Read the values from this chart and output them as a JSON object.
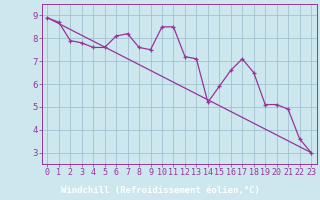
{
  "xlabel": "Windchill (Refroidissement éolien,°C)",
  "background_color": "#cce8ee",
  "plot_bg_color": "#cce8ee",
  "line_color": "#993399",
  "grid_color": "#99bbcc",
  "hours": [
    0,
    1,
    2,
    3,
    4,
    5,
    6,
    7,
    8,
    9,
    10,
    11,
    12,
    13,
    14,
    15,
    16,
    17,
    18,
    19,
    20,
    21,
    22,
    23
  ],
  "windchill": [
    8.9,
    8.7,
    7.9,
    7.8,
    7.6,
    7.6,
    8.1,
    8.2,
    7.6,
    7.5,
    8.5,
    8.5,
    7.2,
    7.1,
    5.2,
    5.9,
    6.6,
    7.1,
    6.5,
    5.1,
    5.1,
    4.9,
    3.6,
    3.0
  ],
  "trend_x": [
    0,
    23
  ],
  "trend_y": [
    8.9,
    3.0
  ],
  "ylim": [
    2.5,
    9.5
  ],
  "xlim": [
    -0.5,
    23.5
  ],
  "yticks": [
    3,
    4,
    5,
    6,
    7,
    8,
    9
  ],
  "xticks": [
    0,
    1,
    2,
    3,
    4,
    5,
    6,
    7,
    8,
    9,
    10,
    11,
    12,
    13,
    14,
    15,
    16,
    17,
    18,
    19,
    20,
    21,
    22,
    23
  ],
  "xlabel_bg": "#663366",
  "xlabel_color": "#ffffff",
  "tick_color": "#993399",
  "tick_fontsize": 6.5,
  "xlabel_fontsize": 6.5,
  "xtick_fontsize": 6.0
}
